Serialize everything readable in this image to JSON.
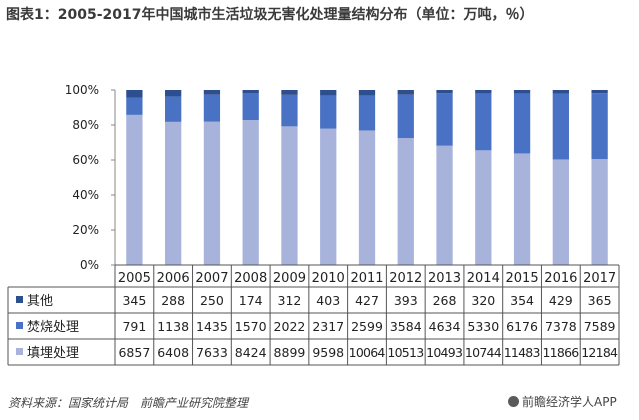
{
  "title": "图表1：2005-2017年中国城市生活垃圾无害化处理量结构分布（单位：万吨，％）",
  "source": "资料来源：国家统计局　前瞻产业研究院整理",
  "brand": "前瞻经济学人APP",
  "colors": {
    "其他": "#2e4f8f",
    "焚烧处理": "#4a72c4",
    "填埋处理": "#a8b3dc"
  },
  "chart_data": {
    "type": "bar",
    "stacked": "percent",
    "categories": [
      "2005",
      "2006",
      "2007",
      "2008",
      "2009",
      "2010",
      "2011",
      "2012",
      "2013",
      "2014",
      "2015",
      "2016",
      "2017"
    ],
    "series": [
      {
        "name": "其他",
        "values": [
          345,
          288,
          250,
          174,
          312,
          403,
          427,
          393,
          268,
          320,
          354,
          429,
          365
        ]
      },
      {
        "name": "焚烧处理",
        "values": [
          791,
          1138,
          1435,
          1570,
          2022,
          2317,
          2599,
          3584,
          4634,
          5330,
          6176,
          7378,
          7589
        ]
      },
      {
        "name": "填埋处理",
        "values": [
          6857,
          6408,
          7633,
          8424,
          8899,
          9598,
          10064,
          10513,
          10493,
          10744,
          11483,
          11866,
          12184
        ]
      }
    ],
    "yticks": [
      "0%",
      "20%",
      "40%",
      "60%",
      "80%",
      "100%"
    ],
    "ylim": [
      0,
      100
    ],
    "grid": false,
    "legend": "data-table"
  }
}
